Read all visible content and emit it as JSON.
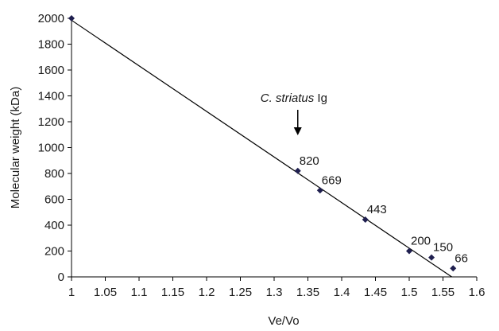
{
  "chart_data": {
    "type": "scatter",
    "xlabel": "Ve/Vo",
    "ylabel": "Molecular weight (kDa)",
    "xlim": [
      1,
      1.6
    ],
    "ylim": [
      0,
      2000
    ],
    "x_ticks": [
      "1",
      "1.05",
      "1.1",
      "1.15",
      "1.2",
      "1.25",
      "1.3",
      "1.35",
      "1.4",
      "1.45",
      "1.5",
      "1.55",
      "1.6"
    ],
    "y_ticks": [
      "0",
      "200",
      "400",
      "600",
      "800",
      "1000",
      "1200",
      "1400",
      "1600",
      "1800",
      "2000"
    ],
    "grid": false,
    "legend": "none",
    "series": [
      {
        "points": [
          {
            "x": 1.0,
            "y": 2000,
            "label": ""
          },
          {
            "x": 1.335,
            "y": 820,
            "label": "820"
          },
          {
            "x": 1.368,
            "y": 669,
            "label": "669"
          },
          {
            "x": 1.435,
            "y": 443,
            "label": "443"
          },
          {
            "x": 1.5,
            "y": 200,
            "label": "200"
          },
          {
            "x": 1.533,
            "y": 150,
            "label": "150"
          },
          {
            "x": 1.565,
            "y": 66,
            "label": "66"
          }
        ]
      }
    ],
    "trendline": {
      "x": [
        1.0,
        1.563
      ],
      "y": [
        1985,
        0
      ]
    },
    "annotation": {
      "text_italic": "C. striatus",
      "text_regular": " Ig",
      "arrow": "down",
      "target_x": 1.335
    },
    "colors": {
      "marker": "#1f1f4f",
      "line": "#000000",
      "axis": "#000000"
    }
  }
}
